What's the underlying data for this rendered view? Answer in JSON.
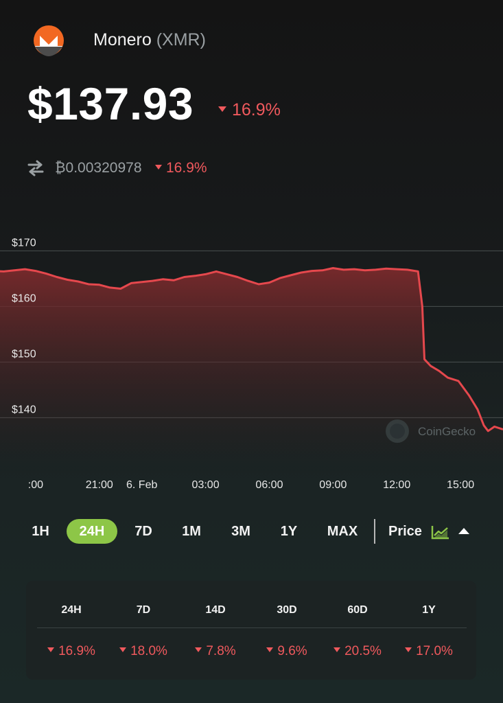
{
  "coin": {
    "name": "Monero",
    "symbol": "(XMR)",
    "icon": "monero-logo-icon"
  },
  "price": {
    "value": "$137.93",
    "change": "16.9%",
    "direction": "down"
  },
  "btc": {
    "icon": "swap-arrows-icon",
    "value": "₿0.00320978",
    "change": "16.9%"
  },
  "chart_data": {
    "type": "area",
    "y_ticks": [
      "$170",
      "$160",
      "$150",
      "$140"
    ],
    "x_ticks": [
      ":00",
      "21:00",
      "6. Feb",
      "03:00",
      "06:00",
      "09:00",
      "12:00",
      "15:00"
    ],
    "ylim": [
      134,
      174
    ],
    "x_range_hours": [
      -24,
      0
    ],
    "series": [
      {
        "values": [
          [
            0,
            166.4
          ],
          [
            0.5,
            166.3
          ],
          [
            1.0,
            166.5
          ],
          [
            1.5,
            166.7
          ],
          [
            2.0,
            166.4
          ],
          [
            2.5,
            165.9
          ],
          [
            3.0,
            165.3
          ],
          [
            3.5,
            164.8
          ],
          [
            4.0,
            164.5
          ],
          [
            4.5,
            164.0
          ],
          [
            5.0,
            163.9
          ],
          [
            5.5,
            163.4
          ],
          [
            6.0,
            163.2
          ],
          [
            6.5,
            164.2
          ],
          [
            7.0,
            164.4
          ],
          [
            7.5,
            164.6
          ],
          [
            8.0,
            164.9
          ],
          [
            8.5,
            164.7
          ],
          [
            9.0,
            165.3
          ],
          [
            9.5,
            165.5
          ],
          [
            10.0,
            165.8
          ],
          [
            10.5,
            166.3
          ],
          [
            11.0,
            165.8
          ],
          [
            11.5,
            165.3
          ],
          [
            12.0,
            164.6
          ],
          [
            12.5,
            164.0
          ],
          [
            13.0,
            164.3
          ],
          [
            13.5,
            165.1
          ],
          [
            14.0,
            165.6
          ],
          [
            14.5,
            166.1
          ],
          [
            15.0,
            166.4
          ],
          [
            15.5,
            166.5
          ],
          [
            16.0,
            166.9
          ],
          [
            16.5,
            166.6
          ],
          [
            17.0,
            166.7
          ],
          [
            17.5,
            166.5
          ],
          [
            18.0,
            166.6
          ],
          [
            18.5,
            166.8
          ],
          [
            19.0,
            166.7
          ],
          [
            19.5,
            166.6
          ],
          [
            20.0,
            166.3
          ],
          [
            20.2,
            160.0
          ],
          [
            20.3,
            150.5
          ],
          [
            20.6,
            149.3
          ],
          [
            21.0,
            148.4
          ],
          [
            21.4,
            147.2
          ],
          [
            21.9,
            146.6
          ],
          [
            22.4,
            144.0
          ],
          [
            22.8,
            141.5
          ],
          [
            23.1,
            138.6
          ],
          [
            23.3,
            137.6
          ],
          [
            23.6,
            138.4
          ],
          [
            24.0,
            137.9
          ]
        ]
      }
    ],
    "line_color": "#e5484d",
    "fill_color": "#7a2a2c",
    "grid": true,
    "watermark": "CoinGecko"
  },
  "range": {
    "options": [
      "1H",
      "24H",
      "7D",
      "1M",
      "3M",
      "1Y",
      "MAX"
    ],
    "active": "24H",
    "price_label": "Price",
    "accent": "#8dc647"
  },
  "performance": {
    "headers": [
      "24H",
      "7D",
      "14D",
      "30D",
      "60D",
      "1Y"
    ],
    "values": [
      "16.9%",
      "18.0%",
      "7.8%",
      "9.6%",
      "20.5%",
      "17.0%"
    ]
  },
  "colors": {
    "negative": "#f0595d",
    "background": "#161919"
  }
}
